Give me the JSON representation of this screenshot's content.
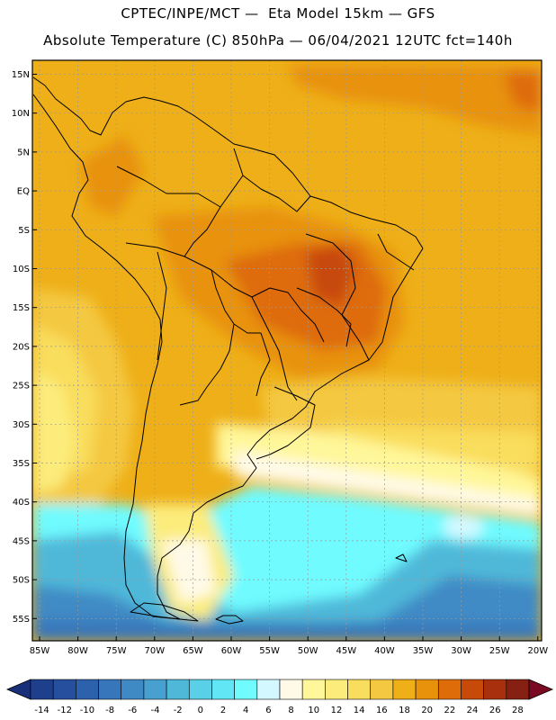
{
  "header": {
    "line1": "CPTEC/INPE/MCT —  Eta Model 15km — GFS",
    "line2": "Absolute Temperature (C) 850hPa — 06/04/2021 12UTC fct=140h"
  },
  "map": {
    "lat_labels": [
      "15N",
      "10N",
      "5N",
      "EQ",
      "5S",
      "10S",
      "15S",
      "20S",
      "25S",
      "30S",
      "35S",
      "40S",
      "45S",
      "50S",
      "55S"
    ],
    "lon_labels": [
      "85W",
      "80W",
      "75W",
      "70W",
      "65W",
      "60W",
      "55W",
      "50W",
      "45W",
      "40W",
      "35W",
      "30W",
      "25W",
      "20W"
    ]
  },
  "colorbar": {
    "labels": [
      "-14",
      "-12",
      "-10",
      "-8",
      "-6",
      "-4",
      "-2",
      "0",
      "2",
      "4",
      "6",
      "8",
      "10",
      "12",
      "14",
      "16",
      "18",
      "20",
      "22",
      "24",
      "26",
      "28"
    ],
    "colors": [
      "#1e3f8c",
      "#26509e",
      "#2c62ad",
      "#3776ba",
      "#3f8ac5",
      "#47a0cf",
      "#4fb8d9",
      "#5ad0e8",
      "#60e6f4",
      "#70fbff",
      "#d4f8ff",
      "#fffae8",
      "#fff79a",
      "#fcec7c",
      "#f9dd5c",
      "#f4c841",
      "#eeaf18",
      "#e8920c",
      "#de6c08",
      "#c84a08",
      "#a8300c",
      "#862012"
    ],
    "under_color": "#1a2f7a",
    "over_color": "#7a0a22"
  }
}
